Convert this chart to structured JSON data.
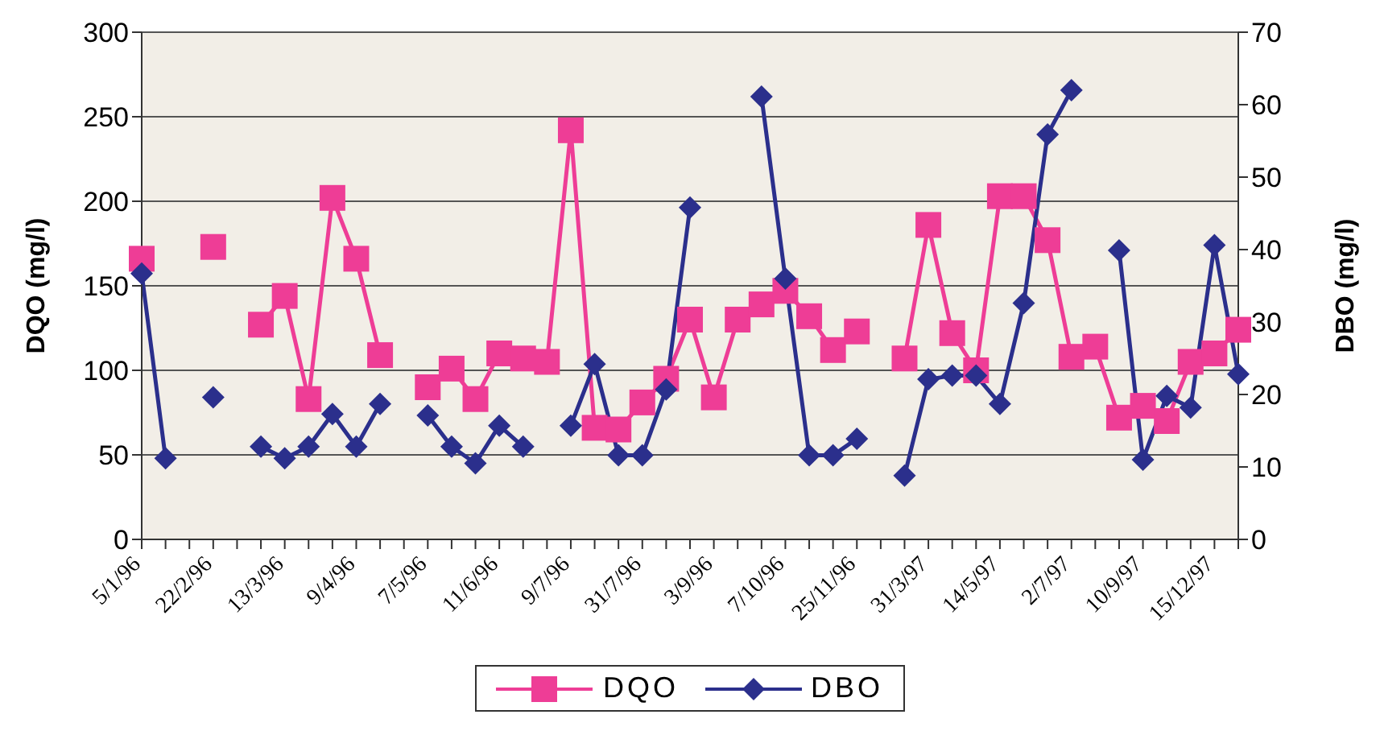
{
  "chart_data": {
    "type": "line",
    "categories": [
      "5/1/96",
      null,
      null,
      "22/2/96",
      null,
      null,
      "13/3/96",
      null,
      null,
      "9/4/96",
      null,
      null,
      "7/5/96",
      null,
      null,
      "11/6/96",
      null,
      null,
      "9/7/96",
      null,
      null,
      "31/7/96",
      null,
      null,
      "3/9/96",
      null,
      null,
      "7/10/96",
      null,
      null,
      "25/11/96",
      null,
      null,
      "31/3/97",
      null,
      null,
      "14/5/97",
      null,
      null,
      "2/7/97",
      null,
      null,
      "10/9/97",
      null,
      null,
      "15/12/97",
      null
    ],
    "series": [
      {
        "name": "DQO",
        "color": "#ee3d96",
        "marker": "square",
        "values": [
          166,
          null,
          null,
          173,
          null,
          127,
          144,
          83,
          202,
          166,
          109,
          null,
          90,
          101,
          83,
          110,
          107,
          105,
          242,
          66,
          65,
          81,
          95,
          130,
          84,
          130,
          139,
          147,
          132,
          112,
          123,
          null,
          107,
          186,
          122,
          100,
          203,
          203,
          177,
          108,
          114,
          72,
          79,
          70,
          105,
          110,
          124
        ]
      },
      {
        "name": "DBO",
        "color": "#2b2f8c",
        "marker": "diamond",
        "axis": "y2",
        "values": [
          36.7,
          11.2,
          null,
          19.6,
          null,
          12.8,
          11.2,
          12.8,
          17.3,
          12.8,
          18.7,
          null,
          17.1,
          12.8,
          10.5,
          15.7,
          12.8,
          null,
          15.7,
          24.2,
          11.6,
          11.6,
          20.7,
          45.8,
          null,
          null,
          61.1,
          36.0,
          11.6,
          11.6,
          13.9,
          null,
          8.8,
          22.1,
          22.6,
          22.6,
          18.7,
          32.6,
          55.9,
          62.0,
          null,
          39.9,
          11.0,
          19.8,
          18.2,
          40.6,
          22.8
        ]
      }
    ],
    "ylabel": "DQO (mg/l)",
    "y2label": "DBO (mg/l)",
    "ylim": [
      0,
      300
    ],
    "yticks": [
      0,
      50,
      100,
      150,
      200,
      250,
      300
    ],
    "y2lim": [
      0,
      70
    ],
    "y2ticks": [
      0,
      10,
      20,
      30,
      40,
      50,
      60,
      70
    ],
    "grid": "y",
    "legend": "bottom"
  }
}
